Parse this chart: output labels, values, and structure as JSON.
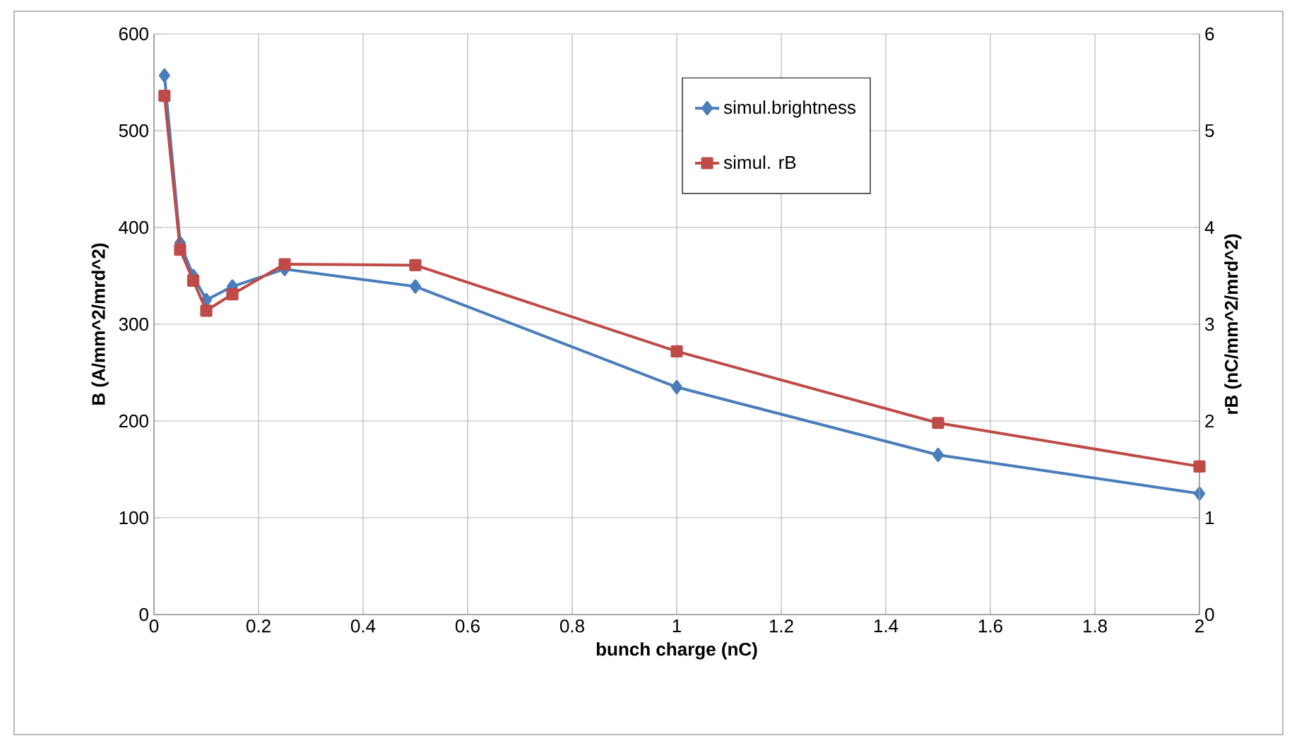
{
  "chart_data": {
    "type": "line",
    "xlabel": "bunch charge (nC)",
    "ylabel": "B (A/mm^2/mrd^2)",
    "y2label": "rB (nC/mm^2/mrd^2)",
    "xlim": [
      0,
      2
    ],
    "xticks": [
      0,
      0.2,
      0.4,
      0.6,
      0.8,
      1,
      1.2,
      1.4,
      1.6,
      1.8,
      2
    ],
    "ylim": [
      0,
      600
    ],
    "yticks": [
      0,
      100,
      200,
      300,
      400,
      500,
      600
    ],
    "y2lim": [
      0,
      6
    ],
    "y2ticks": [
      0,
      1,
      2,
      3,
      4,
      5,
      6
    ],
    "grid": true,
    "legend": "top right",
    "line_style": "solid",
    "series": [
      {
        "name": "simul.brightness",
        "color": "#4a7ebb",
        "marker": "diamond",
        "x": [
          0.02,
          0.05,
          0.075,
          0.1,
          0.15,
          0.25,
          0.5,
          1,
          1.5,
          2
        ],
        "values": [
          557,
          384,
          350,
          325,
          339,
          357,
          339,
          235,
          165,
          125
        ]
      },
      {
        "name": "simul. rB",
        "color": "#be4b48",
        "marker": "square",
        "axis": "y2",
        "x": [
          0.02,
          0.05,
          0.075,
          0.1,
          0.15,
          0.25,
          0.5,
          1,
          1.5,
          2
        ],
        "values": [
          5.36,
          3.77,
          3.45,
          3.14,
          3.31,
          3.62,
          3.61,
          2.72,
          1.98,
          1.53
        ]
      }
    ]
  }
}
